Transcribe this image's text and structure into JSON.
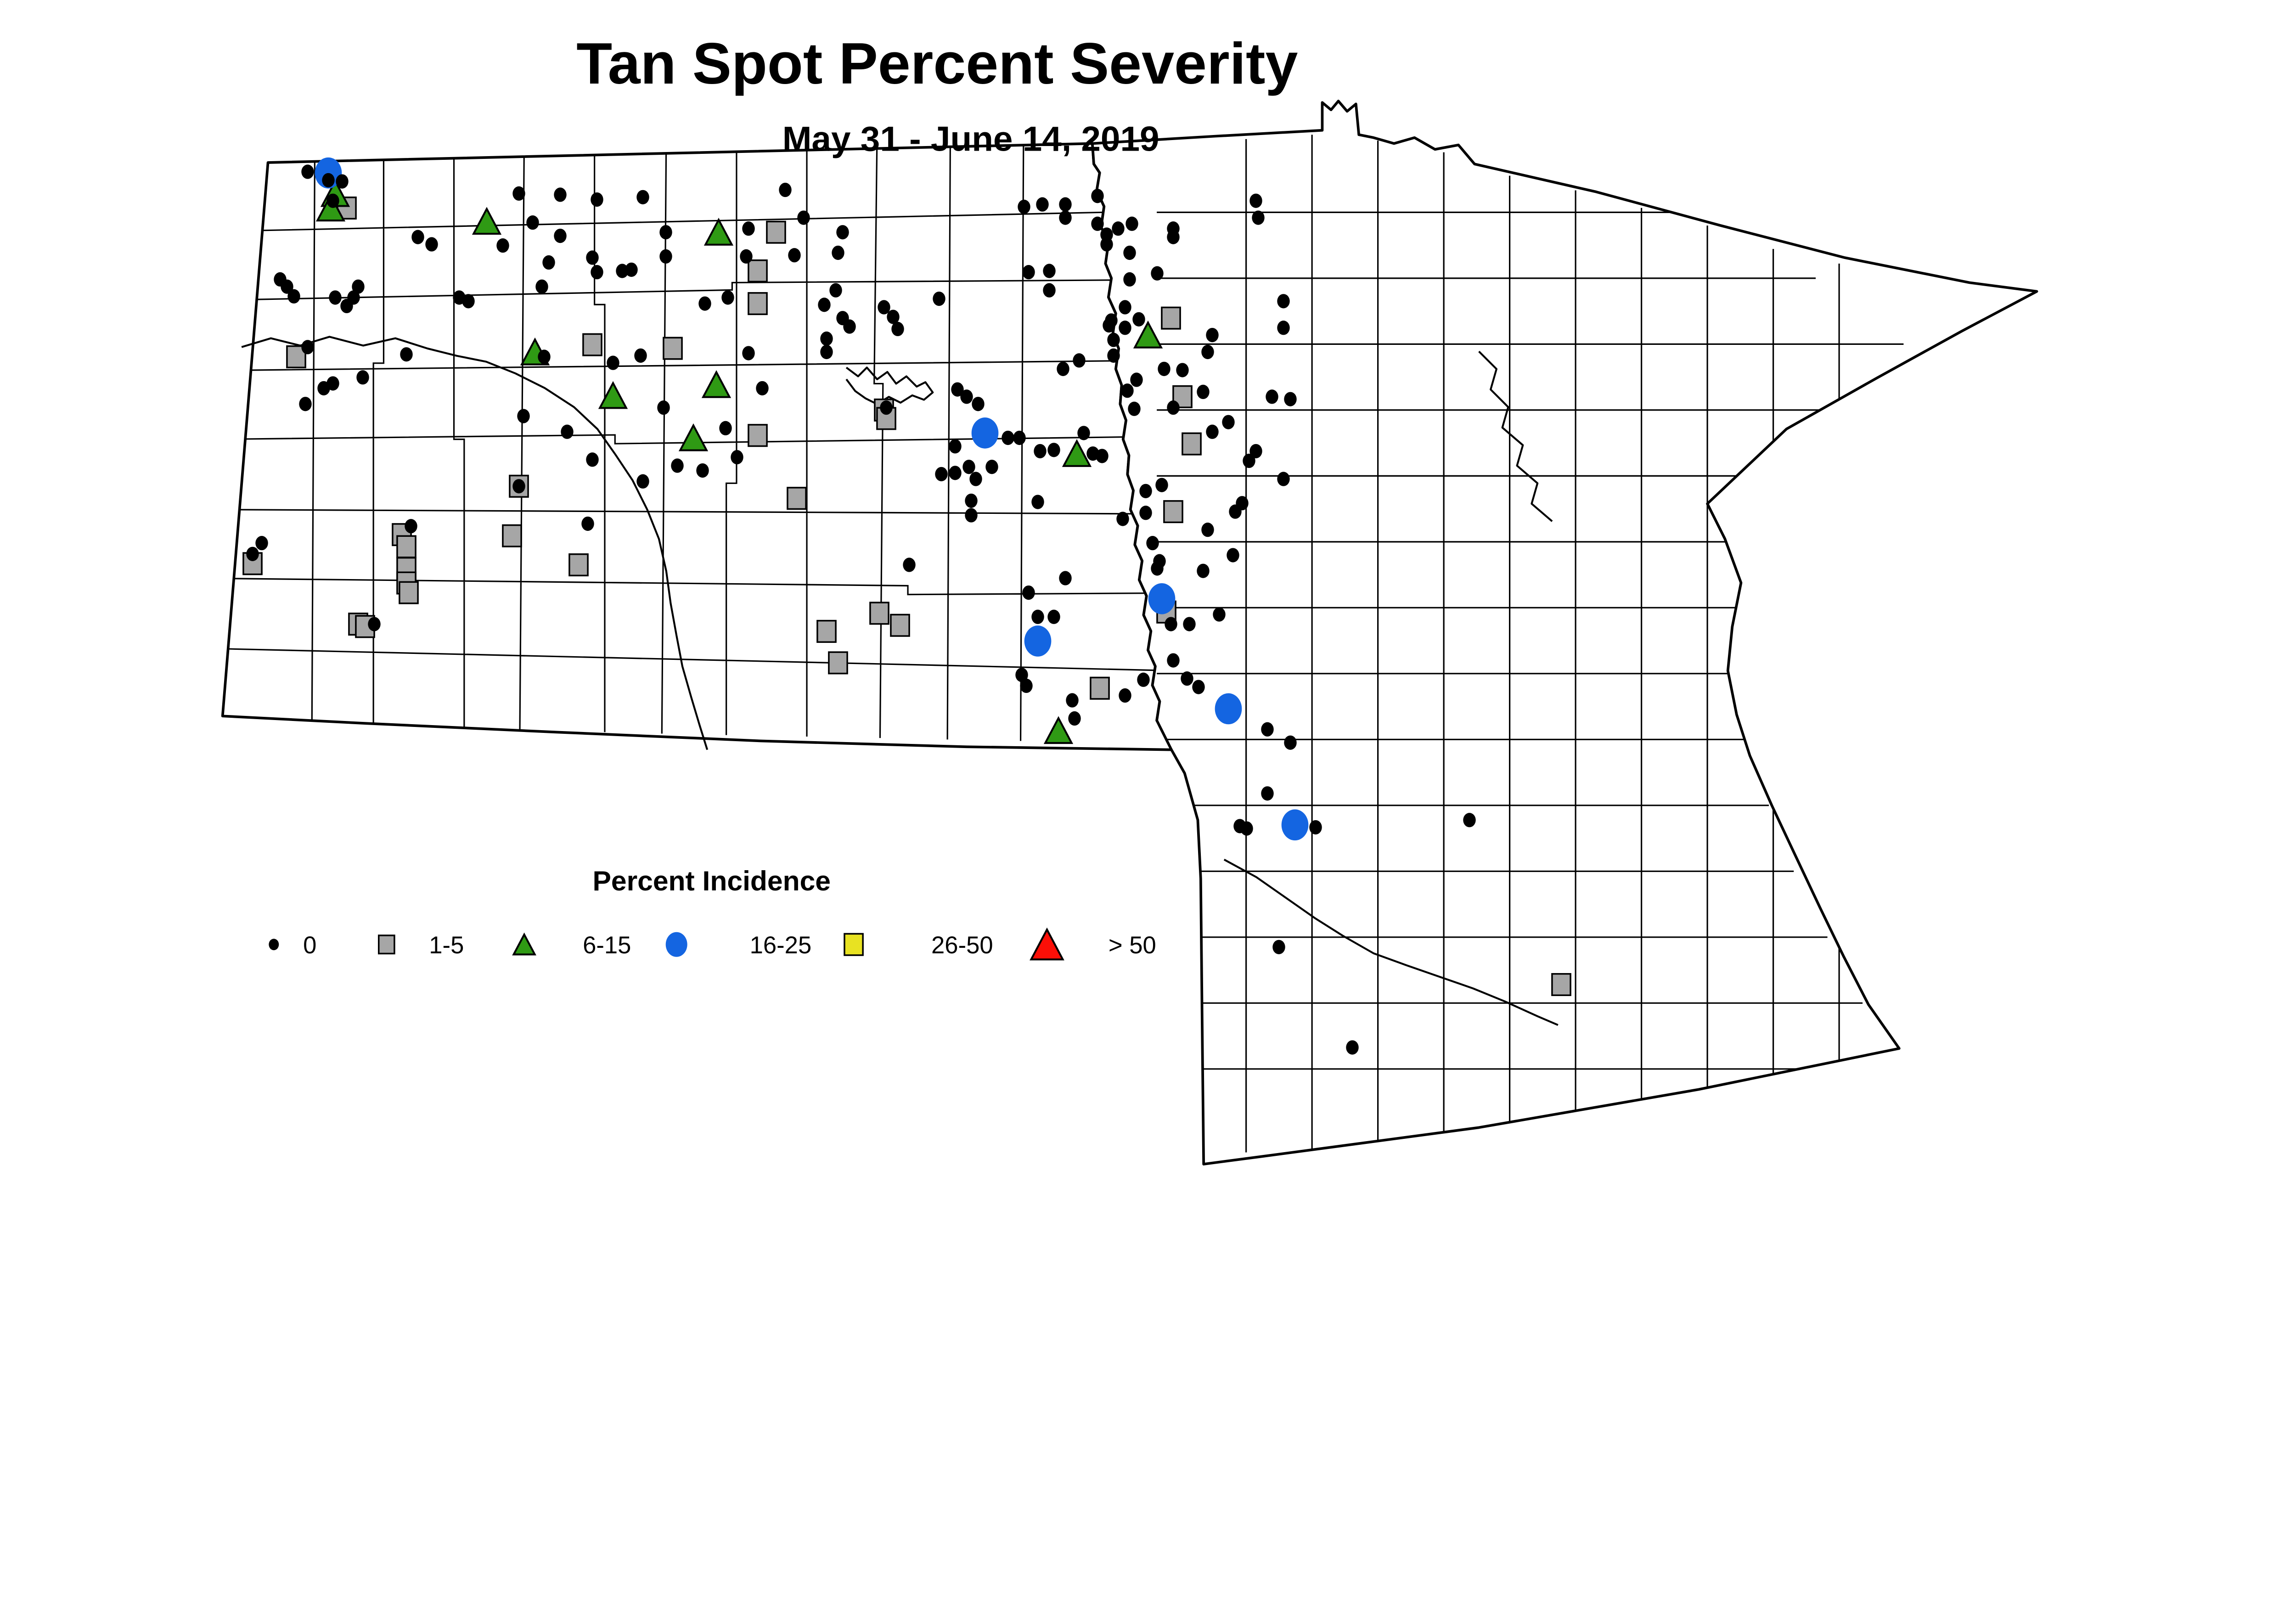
{
  "title": "Tan Spot Percent Severity",
  "subtitle": "May 31 - June 14, 2019",
  "legend": {
    "title": "Percent Incidence",
    "items": [
      {
        "label": "0",
        "symbol": "dot",
        "color": "#000000"
      },
      {
        "label": "1-5",
        "symbol": "square",
        "color": "#A6A6A6"
      },
      {
        "label": "6-15",
        "symbol": "triangle",
        "color": "#2F9A14"
      },
      {
        "label": "16-25",
        "symbol": "circle",
        "color": "#1465E1"
      },
      {
        "label": "26-50",
        "symbol": "square",
        "color": "#E8E222"
      },
      {
        "label": "> 50",
        "symbol": "triangle",
        "color": "#FB0F07"
      }
    ]
  },
  "chart_data": {
    "type": "scatter",
    "title": "Tan Spot Percent Severity",
    "subtitle": "May 31 - June 14, 2019",
    "basemap": "North Dakota and Minnesota county outlines",
    "legend_title": "Percent Incidence",
    "coordinates": "percent of canvas (x right, y down), canvas 1568x826",
    "series": [
      {
        "name": "0",
        "symbol": "dot",
        "color": "#000000",
        "points": [
          [
            13.4,
            14.2
          ],
          [
            14.3,
            14.9
          ],
          [
            14.9,
            15.0
          ],
          [
            14.5,
            16.6
          ],
          [
            22.6,
            16.0
          ],
          [
            24.4,
            16.1
          ],
          [
            26.0,
            16.5
          ],
          [
            28.0,
            16.3
          ],
          [
            23.2,
            18.4
          ],
          [
            18.2,
            19.6
          ],
          [
            18.8,
            20.2
          ],
          [
            21.9,
            20.3
          ],
          [
            24.4,
            19.5
          ],
          [
            25.8,
            21.3
          ],
          [
            23.9,
            21.7
          ],
          [
            27.5,
            22.3
          ],
          [
            26.0,
            22.5
          ],
          [
            27.1,
            22.4
          ],
          [
            23.6,
            23.7
          ],
          [
            12.2,
            23.1
          ],
          [
            12.5,
            23.7
          ],
          [
            12.8,
            24.5
          ],
          [
            15.6,
            23.7
          ],
          [
            15.4,
            24.6
          ],
          [
            14.6,
            24.6
          ],
          [
            15.1,
            25.3
          ],
          [
            20.0,
            24.6
          ],
          [
            20.4,
            24.9
          ],
          [
            23.7,
            29.5
          ],
          [
            26.7,
            30.0
          ],
          [
            27.9,
            29.4
          ],
          [
            13.4,
            28.7
          ],
          [
            17.7,
            29.3
          ],
          [
            15.8,
            31.2
          ],
          [
            14.5,
            31.7
          ],
          [
            14.1,
            32.1
          ],
          [
            13.3,
            33.4
          ],
          [
            22.8,
            34.4
          ],
          [
            24.7,
            35.7
          ],
          [
            34.2,
            15.7
          ],
          [
            35.0,
            18.0
          ],
          [
            29.0,
            19.2
          ],
          [
            32.6,
            18.9
          ],
          [
            36.7,
            19.2
          ],
          [
            29.0,
            21.2
          ],
          [
            32.5,
            21.2
          ],
          [
            34.6,
            21.1
          ],
          [
            36.5,
            20.9
          ],
          [
            36.4,
            24.0
          ],
          [
            31.7,
            24.6
          ],
          [
            30.7,
            25.1
          ],
          [
            35.9,
            25.2
          ],
          [
            36.7,
            26.3
          ],
          [
            37.0,
            27.0
          ],
          [
            38.5,
            25.4
          ],
          [
            38.9,
            26.2
          ],
          [
            39.1,
            27.2
          ],
          [
            40.9,
            24.7
          ],
          [
            36.0,
            28.0
          ],
          [
            36.0,
            29.1
          ],
          [
            32.6,
            29.2
          ],
          [
            33.2,
            32.1
          ],
          [
            28.9,
            33.7
          ],
          [
            31.6,
            35.4
          ],
          [
            44.6,
            17.1
          ],
          [
            45.4,
            16.9
          ],
          [
            46.4,
            16.9
          ],
          [
            46.4,
            18.0
          ],
          [
            44.8,
            22.5
          ],
          [
            45.7,
            22.4
          ],
          [
            45.7,
            24.0
          ],
          [
            46.3,
            30.5
          ],
          [
            41.7,
            32.2
          ],
          [
            42.1,
            32.8
          ],
          [
            42.6,
            33.4
          ],
          [
            43.9,
            36.2
          ],
          [
            44.4,
            36.2
          ],
          [
            32.1,
            37.8
          ],
          [
            29.5,
            38.5
          ],
          [
            30.6,
            38.9
          ],
          [
            41.6,
            36.9
          ],
          [
            41.6,
            39.1
          ],
          [
            41.0,
            39.2
          ],
          [
            42.2,
            38.6
          ],
          [
            43.2,
            38.6
          ],
          [
            42.5,
            39.6
          ],
          [
            45.3,
            37.3
          ],
          [
            45.9,
            37.2
          ],
          [
            42.3,
            41.4
          ],
          [
            42.3,
            42.6
          ],
          [
            45.2,
            41.5
          ],
          [
            39.6,
            46.7
          ],
          [
            44.8,
            49.0
          ],
          [
            46.4,
            47.8
          ],
          [
            45.2,
            51.0
          ],
          [
            45.9,
            51.0
          ],
          [
            44.5,
            55.8
          ],
          [
            44.7,
            56.7
          ],
          [
            47.8,
            16.2
          ],
          [
            47.8,
            18.5
          ],
          [
            48.7,
            18.9
          ],
          [
            48.2,
            19.4
          ],
          [
            49.3,
            18.5
          ],
          [
            48.2,
            20.2
          ],
          [
            49.2,
            20.9
          ],
          [
            51.1,
            18.9
          ],
          [
            51.1,
            19.6
          ],
          [
            54.7,
            16.6
          ],
          [
            54.8,
            18.0
          ],
          [
            50.4,
            22.6
          ],
          [
            49.2,
            23.1
          ],
          [
            49.0,
            25.4
          ],
          [
            49.6,
            26.4
          ],
          [
            48.4,
            26.5
          ],
          [
            48.3,
            26.9
          ],
          [
            49.0,
            27.1
          ],
          [
            48.5,
            28.1
          ],
          [
            52.8,
            27.7
          ],
          [
            55.9,
            27.1
          ],
          [
            55.9,
            24.9
          ],
          [
            52.6,
            29.1
          ],
          [
            47.0,
            29.8
          ],
          [
            48.5,
            29.4
          ],
          [
            50.7,
            30.5
          ],
          [
            51.5,
            30.6
          ],
          [
            49.5,
            31.4
          ],
          [
            49.1,
            32.3
          ],
          [
            52.4,
            32.4
          ],
          [
            55.4,
            32.8
          ],
          [
            49.4,
            33.8
          ],
          [
            51.1,
            33.7
          ],
          [
            53.5,
            34.9
          ],
          [
            52.8,
            35.7
          ],
          [
            47.2,
            35.8
          ],
          [
            56.2,
            33.0
          ],
          [
            47.6,
            37.5
          ],
          [
            48.0,
            37.7
          ],
          [
            54.7,
            37.3
          ],
          [
            54.4,
            38.1
          ],
          [
            55.9,
            39.6
          ],
          [
            49.9,
            40.6
          ],
          [
            50.6,
            40.1
          ],
          [
            48.9,
            42.9
          ],
          [
            49.9,
            42.4
          ],
          [
            54.1,
            41.6
          ],
          [
            53.8,
            42.3
          ],
          [
            52.6,
            43.8
          ],
          [
            50.2,
            44.9
          ],
          [
            53.7,
            45.9
          ],
          [
            50.5,
            46.4
          ],
          [
            50.4,
            47.0
          ],
          [
            52.4,
            47.2
          ],
          [
            51.0,
            51.6
          ],
          [
            51.8,
            51.6
          ],
          [
            53.1,
            50.8
          ],
          [
            51.1,
            54.6
          ],
          [
            51.7,
            56.1
          ],
          [
            52.2,
            56.8
          ],
          [
            49.8,
            56.2
          ],
          [
            49.0,
            57.5
          ],
          [
            46.7,
            57.9
          ],
          [
            46.8,
            59.4
          ],
          [
            55.2,
            60.3
          ],
          [
            56.2,
            61.4
          ],
          [
            55.2,
            65.6
          ],
          [
            54.0,
            68.3
          ],
          [
            54.3,
            68.5
          ],
          [
            57.3,
            68.4
          ],
          [
            64.0,
            67.8
          ],
          [
            55.7,
            78.3
          ],
          [
            58.9,
            86.6
          ],
          [
            28.0,
            39.8
          ],
          [
            25.8,
            38.0
          ],
          [
            25.6,
            43.3
          ],
          [
            17.9,
            43.5
          ],
          [
            11.4,
            44.9
          ],
          [
            11.0,
            45.8
          ],
          [
            16.3,
            51.6
          ],
          [
            22.6,
            40.2
          ],
          [
            38.6,
            33.7
          ]
        ]
      },
      {
        "name": "1-5",
        "symbol": "square",
        "color": "#A6A6A6",
        "points": [
          [
            15.1,
            17.2
          ],
          [
            25.8,
            28.5
          ],
          [
            12.9,
            29.5
          ],
          [
            33.8,
            19.2
          ],
          [
            33.0,
            22.4
          ],
          [
            33.0,
            25.1
          ],
          [
            29.3,
            28.8
          ],
          [
            33.0,
            36.0
          ],
          [
            38.5,
            33.9
          ],
          [
            38.6,
            34.6
          ],
          [
            51.0,
            26.3
          ],
          [
            51.5,
            32.8
          ],
          [
            51.9,
            36.7
          ],
          [
            34.7,
            41.2
          ],
          [
            38.3,
            50.7
          ],
          [
            39.2,
            51.7
          ],
          [
            36.0,
            52.2
          ],
          [
            36.5,
            54.8
          ],
          [
            22.6,
            40.2
          ],
          [
            22.3,
            44.3
          ],
          [
            17.5,
            44.2
          ],
          [
            17.7,
            45.2
          ],
          [
            11.0,
            46.6
          ],
          [
            25.2,
            46.7
          ],
          [
            17.7,
            47.0
          ],
          [
            17.7,
            48.2
          ],
          [
            17.8,
            49.0
          ],
          [
            15.6,
            51.6
          ],
          [
            15.9,
            51.8
          ],
          [
            51.1,
            42.3
          ],
          [
            50.8,
            50.6
          ],
          [
            47.9,
            56.9
          ],
          [
            68.0,
            81.4
          ]
        ]
      },
      {
        "name": "6-15",
        "symbol": "triangle",
        "color": "#2F9A14",
        "points": [
          [
            14.6,
            16.0
          ],
          [
            14.4,
            17.2
          ],
          [
            21.2,
            18.3
          ],
          [
            23.3,
            29.1
          ],
          [
            26.7,
            32.7
          ],
          [
            31.3,
            19.2
          ],
          [
            31.2,
            31.8
          ],
          [
            30.2,
            36.2
          ],
          [
            50.0,
            27.7
          ],
          [
            46.9,
            37.5
          ],
          [
            46.1,
            60.4
          ]
        ]
      },
      {
        "name": "16-25",
        "symbol": "circle",
        "color": "#1465E1",
        "points": [
          [
            14.3,
            14.3
          ],
          [
            42.9,
            35.8
          ],
          [
            50.6,
            49.5
          ],
          [
            45.2,
            53.0
          ],
          [
            53.5,
            58.6
          ],
          [
            56.4,
            68.2
          ]
        ]
      },
      {
        "name": "26-50",
        "symbol": "square",
        "color": "#E8E222",
        "points": []
      },
      {
        "name": "> 50",
        "symbol": "triangle",
        "color": "#FB0F07",
        "points": []
      }
    ]
  }
}
